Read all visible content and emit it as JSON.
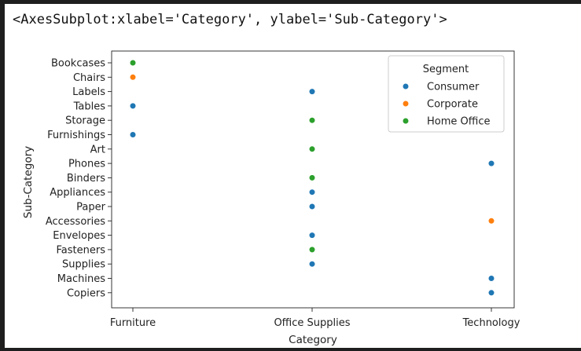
{
  "output": {
    "repr": "<AxesSubplot:xlabel='Category', ylabel='Sub-Category'>"
  },
  "chart_data": {
    "type": "scatter",
    "xlabel": "Category",
    "ylabel": "Sub-Category",
    "x_categories": [
      "Furniture",
      "Office Supplies",
      "Technology"
    ],
    "y_categories": [
      "Bookcases",
      "Chairs",
      "Labels",
      "Tables",
      "Storage",
      "Furnishings",
      "Art",
      "Phones",
      "Binders",
      "Appliances",
      "Paper",
      "Accessories",
      "Envelopes",
      "Fasteners",
      "Supplies",
      "Machines",
      "Copiers"
    ],
    "legend": {
      "title": "Segment",
      "placement": "upper right",
      "entries": [
        {
          "name": "Consumer",
          "color": "#1f77b4"
        },
        {
          "name": "Corporate",
          "color": "#ff7f0e"
        },
        {
          "name": "Home Office",
          "color": "#2ca02c"
        }
      ]
    },
    "points": [
      {
        "x": "Furniture",
        "y": "Bookcases",
        "segment": "Home Office"
      },
      {
        "x": "Furniture",
        "y": "Chairs",
        "segment": "Corporate"
      },
      {
        "x": "Office Supplies",
        "y": "Labels",
        "segment": "Consumer"
      },
      {
        "x": "Furniture",
        "y": "Tables",
        "segment": "Consumer"
      },
      {
        "x": "Office Supplies",
        "y": "Storage",
        "segment": "Home Office"
      },
      {
        "x": "Furniture",
        "y": "Furnishings",
        "segment": "Consumer"
      },
      {
        "x": "Office Supplies",
        "y": "Art",
        "segment": "Home Office"
      },
      {
        "x": "Technology",
        "y": "Phones",
        "segment": "Consumer"
      },
      {
        "x": "Office Supplies",
        "y": "Binders",
        "segment": "Home Office"
      },
      {
        "x": "Office Supplies",
        "y": "Appliances",
        "segment": "Consumer"
      },
      {
        "x": "Office Supplies",
        "y": "Paper",
        "segment": "Consumer"
      },
      {
        "x": "Technology",
        "y": "Accessories",
        "segment": "Corporate"
      },
      {
        "x": "Office Supplies",
        "y": "Envelopes",
        "segment": "Consumer"
      },
      {
        "x": "Office Supplies",
        "y": "Fasteners",
        "segment": "Home Office"
      },
      {
        "x": "Office Supplies",
        "y": "Supplies",
        "segment": "Consumer"
      },
      {
        "x": "Technology",
        "y": "Machines",
        "segment": "Consumer"
      },
      {
        "x": "Technology",
        "y": "Copiers",
        "segment": "Consumer"
      }
    ],
    "grid": false
  }
}
